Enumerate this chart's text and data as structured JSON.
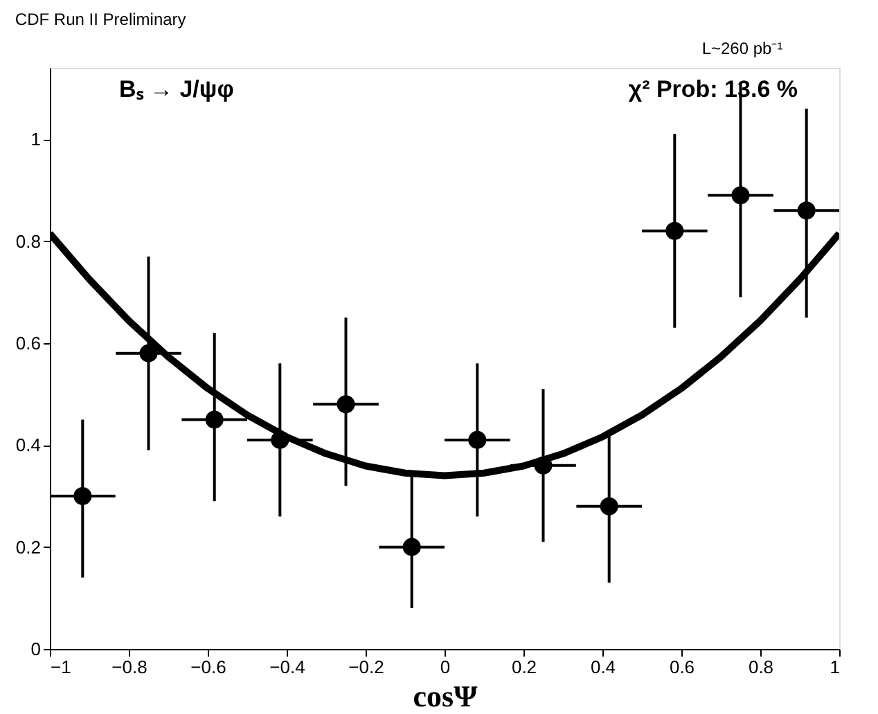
{
  "chart_data": {
    "type": "scatter",
    "title": "CDF Run II Preliminary",
    "xlabel": "cosΨ",
    "annotations": [
      "L~260 pb⁻¹",
      "Bₛ → J/ψφ",
      "χ² Prob: 13.6 %"
    ],
    "xlim": [
      -1,
      1
    ],
    "xticks": [
      -1,
      -0.8,
      -0.6,
      -0.4,
      -0.2,
      0,
      0.2,
      0.4,
      0.6,
      0.8,
      1
    ],
    "ylim": [
      0,
      1.14
    ],
    "yticks": [
      0,
      0.2,
      0.4,
      0.6,
      0.8,
      1
    ],
    "grid": false,
    "marker": "circle",
    "series": [
      {
        "color": "#000000",
        "x": [
          -0.917,
          -0.75,
          -0.583,
          -0.417,
          -0.25,
          -0.083,
          0.083,
          0.25,
          0.417,
          0.583,
          0.75,
          0.917
        ],
        "values": [
          0.3,
          0.58,
          0.45,
          0.41,
          0.48,
          0.2,
          0.41,
          0.36,
          0.28,
          0.82,
          0.89,
          0.86
        ],
        "errors": [
          [
            0.14,
            0.45
          ],
          [
            0.39,
            0.77
          ],
          [
            0.29,
            0.62
          ],
          [
            0.26,
            0.56
          ],
          [
            0.32,
            0.65
          ],
          [
            0.08,
            0.34
          ],
          [
            0.26,
            0.56
          ],
          [
            0.21,
            0.51
          ],
          [
            0.13,
            0.42
          ],
          [
            0.63,
            1.01
          ],
          [
            0.69,
            1.11
          ],
          [
            0.65,
            1.06
          ]
        ],
        "xerrors": [
          0.083,
          0.083,
          0.083,
          0.083,
          0.083,
          0.083,
          0.083,
          0.083,
          0.083,
          0.083,
          0.083,
          0.083
        ]
      },
      {
        "type": "line",
        "color": "#000000",
        "marker": "none",
        "line_style": "solid",
        "x": [
          -1,
          -0.9,
          -0.8,
          -0.7,
          -0.6,
          -0.5,
          -0.4,
          -0.3,
          -0.2,
          -0.1,
          0,
          0.1,
          0.2,
          0.3,
          0.4,
          0.5,
          0.6,
          0.7,
          0.8,
          0.9,
          1
        ],
        "values": [
          0.815,
          0.725,
          0.644,
          0.573,
          0.511,
          0.459,
          0.416,
          0.383,
          0.359,
          0.345,
          0.34,
          0.345,
          0.359,
          0.383,
          0.416,
          0.459,
          0.511,
          0.573,
          0.644,
          0.725,
          0.815
        ]
      }
    ]
  }
}
